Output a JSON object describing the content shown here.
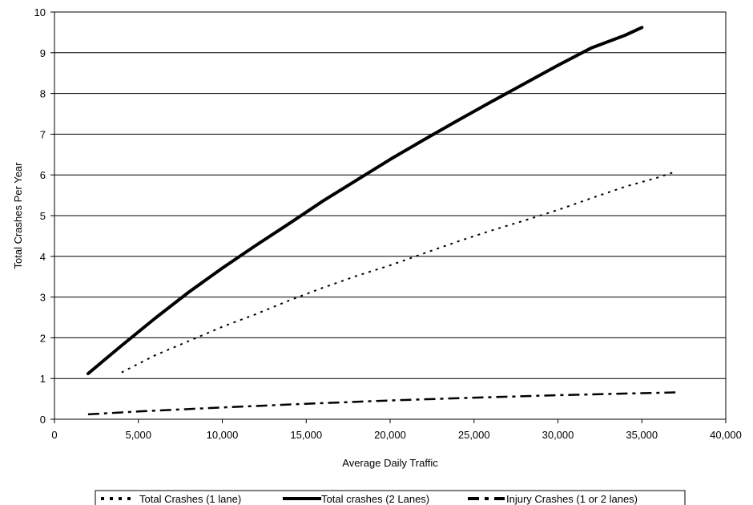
{
  "chart_data": {
    "type": "line",
    "title": "",
    "xlabel": "Average Daily Traffic",
    "ylabel": "Total Crashes Per Year",
    "xlim": [
      0,
      40000
    ],
    "ylim": [
      0,
      10
    ],
    "xticks": [
      0,
      5000,
      10000,
      15000,
      20000,
      25000,
      30000,
      35000,
      40000
    ],
    "xtick_labels": [
      "0",
      "5,000",
      "10,000",
      "15,000",
      "20,000",
      "25,000",
      "30,000",
      "35,000",
      "40,000"
    ],
    "yticks": [
      0,
      1,
      2,
      3,
      4,
      5,
      6,
      7,
      8,
      9,
      10
    ],
    "ytick_labels": [
      "0",
      "1",
      "2",
      "3",
      "4",
      "5",
      "6",
      "7",
      "8",
      "9",
      "10"
    ],
    "grid": "horizontal",
    "legend_position": "bottom",
    "series": [
      {
        "name": "Total Crashes (1 lane)",
        "style": "dotted",
        "color": "#000000",
        "x": [
          4000,
          6000,
          8000,
          10000,
          12000,
          14000,
          16000,
          18000,
          20000,
          22000,
          24000,
          26000,
          28000,
          30000,
          32000,
          34000,
          36000,
          37000
        ],
        "y": [
          1.15,
          1.57,
          1.92,
          2.27,
          2.58,
          2.92,
          3.23,
          3.52,
          3.78,
          4.07,
          4.36,
          4.63,
          4.88,
          5.14,
          5.43,
          5.71,
          5.94,
          6.08
        ]
      },
      {
        "name": "Total crashes (2 Lanes)",
        "style": "solid",
        "color": "#000000",
        "x": [
          2000,
          4000,
          6000,
          8000,
          10000,
          12000,
          14000,
          16000,
          18000,
          20000,
          22000,
          24000,
          26000,
          28000,
          30000,
          32000,
          34000,
          35000
        ],
        "y": [
          1.12,
          1.81,
          2.48,
          3.12,
          3.71,
          4.27,
          4.81,
          5.36,
          5.87,
          6.38,
          6.86,
          7.33,
          7.79,
          8.24,
          8.69,
          9.12,
          9.43,
          9.62
        ]
      },
      {
        "name": "Injury Crashes (1 or 2 lanes)",
        "style": "dash-dot",
        "color": "#000000",
        "x": [
          2000,
          5000,
          10000,
          15000,
          20000,
          25000,
          30000,
          35000,
          37000
        ],
        "y": [
          0.12,
          0.19,
          0.29,
          0.38,
          0.46,
          0.53,
          0.59,
          0.64,
          0.66
        ]
      }
    ]
  }
}
